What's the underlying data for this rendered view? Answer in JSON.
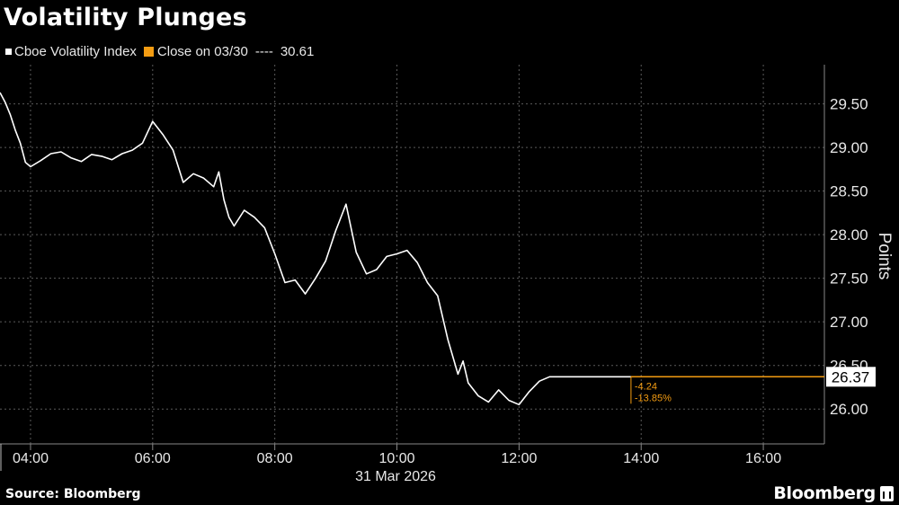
{
  "header": {
    "title": "Volatility Plunges"
  },
  "legend": {
    "series_label": "Cboe Volatility Index",
    "close_label": "Close on 03/30",
    "close_dashes": "----",
    "close_value": "30.61"
  },
  "footer": {
    "source": "Source: Bloomberg",
    "brand": "Bloomberg"
  },
  "colors": {
    "background": "#000000",
    "series": "#ffffff",
    "close_line": "#f39c12",
    "grid": "#5a5a5a"
  },
  "chart_data": {
    "type": "line",
    "title": "Volatility Plunges",
    "ylabel": "Points",
    "xlabel": "31 Mar 2026",
    "ylim": [
      25.6,
      29.95
    ],
    "xlim": [
      "03:30",
      "17:00"
    ],
    "y_ticks": [
      "26.00",
      "26.50",
      "27.00",
      "27.50",
      "28.00",
      "28.50",
      "29.00",
      "29.50"
    ],
    "x_ticks": [
      "04:00",
      "06:00",
      "08:00",
      "10:00",
      "12:00",
      "14:00",
      "16:00"
    ],
    "grid": true,
    "series": [
      {
        "name": "Cboe Volatility Index",
        "x": [
          "03:30",
          "03:35",
          "03:40",
          "03:45",
          "03:50",
          "03:55",
          "04:00",
          "04:10",
          "04:20",
          "04:30",
          "04:40",
          "04:50",
          "05:00",
          "05:10",
          "05:20",
          "05:30",
          "05:40",
          "05:50",
          "06:00",
          "06:10",
          "06:20",
          "06:30",
          "06:40",
          "06:50",
          "07:00",
          "07:05",
          "07:10",
          "07:15",
          "07:20",
          "07:30",
          "07:40",
          "07:50",
          "08:00",
          "08:10",
          "08:20",
          "08:30",
          "08:40",
          "08:50",
          "09:00",
          "09:10",
          "09:20",
          "09:30",
          "09:40",
          "09:50",
          "10:00",
          "10:10",
          "10:20",
          "10:30",
          "10:40",
          "10:50",
          "11:00",
          "11:05",
          "11:10",
          "11:20",
          "11:30",
          "11:40",
          "11:50",
          "12:00",
          "12:10",
          "12:20",
          "12:30",
          "12:35",
          "12:40",
          "12:45",
          "12:50",
          "13:00",
          "13:10",
          "13:20",
          "13:30",
          "13:40",
          "13:50",
          "13:55"
        ],
        "values": [
          29.63,
          29.52,
          29.38,
          29.2,
          29.05,
          28.83,
          28.78,
          28.85,
          28.93,
          28.95,
          28.88,
          28.84,
          28.92,
          28.9,
          28.86,
          28.93,
          28.97,
          29.05,
          29.3,
          29.15,
          28.97,
          28.6,
          28.7,
          28.65,
          28.55,
          28.72,
          28.4,
          28.2,
          28.1,
          28.28,
          28.2,
          28.08,
          27.78,
          27.45,
          27.48,
          27.32,
          27.5,
          27.7,
          28.05,
          28.35,
          27.8,
          27.55,
          27.6,
          27.75,
          27.78,
          27.82,
          27.68,
          27.45,
          27.3,
          26.8,
          26.4,
          26.55,
          26.3,
          26.15,
          26.08,
          26.22,
          26.1,
          26.05,
          26.2,
          26.32,
          26.37,
          26.37,
          26.37,
          26.37,
          26.37,
          26.37,
          26.37,
          26.37,
          26.37,
          26.37,
          26.37,
          26.37
        ]
      }
    ],
    "last_value": "26.37",
    "change_abs": "-4.24",
    "change_pct": "-13.85%"
  }
}
